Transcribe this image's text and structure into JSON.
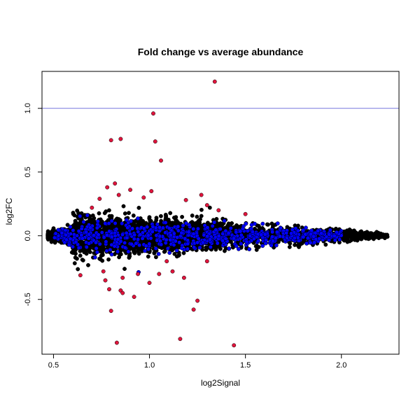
{
  "chart_data": {
    "type": "scatter",
    "title": "Fold change vs average abundance",
    "xlabel": "log2Signal",
    "ylabel": "log2FC",
    "xlim": [
      0.44,
      2.3
    ],
    "ylim": [
      -0.93,
      1.29
    ],
    "xticks": [
      0.5,
      1.0,
      1.5,
      2.0
    ],
    "xtick_labels": [
      "0.5",
      "1.0",
      "1.5",
      "2.0"
    ],
    "yticks": [
      -0.5,
      0.0,
      0.5,
      1.0
    ],
    "ytick_labels": [
      "-0.5",
      "0.0",
      "0.5",
      "1.0"
    ],
    "reference_line": {
      "y": 1.0,
      "color": "#7777dd"
    },
    "colors": {
      "background_points": "#000000",
      "blue_points": "#0000ff",
      "red_points": "#e0143c"
    },
    "series": [
      {
        "color": "#e0143c",
        "points": [
          [
            1.34,
            1.21
          ],
          [
            1.02,
            0.96
          ],
          [
            0.85,
            0.76
          ],
          [
            0.8,
            0.75
          ],
          [
            1.03,
            0.74
          ],
          [
            1.06,
            0.59
          ],
          [
            0.82,
            0.41
          ],
          [
            0.78,
            0.38
          ],
          [
            0.9,
            0.36
          ],
          [
            1.01,
            0.35
          ],
          [
            0.84,
            0.32
          ],
          [
            1.27,
            0.32
          ],
          [
            0.97,
            0.3
          ],
          [
            0.74,
            0.29
          ],
          [
            1.19,
            0.28
          ],
          [
            1.3,
            0.24
          ],
          [
            1.36,
            0.2
          ],
          [
            1.5,
            0.17
          ],
          [
            0.7,
            0.22
          ],
          [
            0.64,
            -0.31
          ],
          [
            0.77,
            -0.35
          ],
          [
            0.86,
            -0.33
          ],
          [
            0.94,
            -0.3
          ],
          [
            1.05,
            -0.3
          ],
          [
            1.12,
            -0.28
          ],
          [
            1.18,
            -0.33
          ],
          [
            0.79,
            -0.42
          ],
          [
            0.85,
            -0.43
          ],
          [
            0.86,
            -0.45
          ],
          [
            0.92,
            -0.48
          ],
          [
            1.25,
            -0.51
          ],
          [
            0.8,
            -0.59
          ],
          [
            1.23,
            -0.58
          ],
          [
            1.16,
            -0.81
          ],
          [
            0.83,
            -0.84
          ],
          [
            1.44,
            -0.86
          ],
          [
            1.0,
            -0.37
          ],
          [
            1.09,
            -0.2
          ],
          [
            0.76,
            -0.28
          ],
          [
            1.3,
            -0.2
          ]
        ]
      }
    ]
  }
}
